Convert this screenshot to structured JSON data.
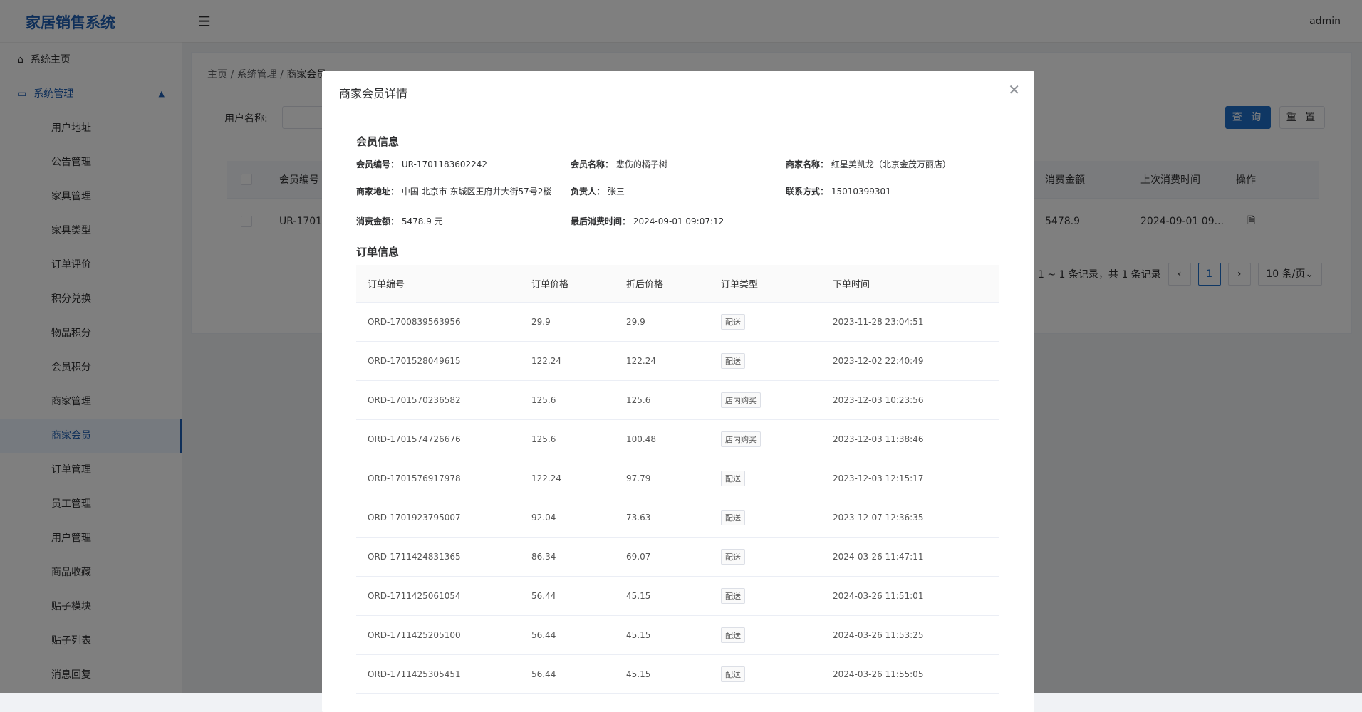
{
  "app": {
    "title": "家居销售系统",
    "user": "admin"
  },
  "sidebar": {
    "home": "系统主页",
    "group": "系统管理",
    "items": [
      "用户地址",
      "公告管理",
      "家具管理",
      "家具类型",
      "订单评价",
      "积分兑换",
      "物品积分",
      "会员积分",
      "商家管理",
      "商家会员",
      "订单管理",
      "员工管理",
      "用户管理",
      "商品收藏",
      "贴子模块",
      "贴子列表",
      "消息回复"
    ],
    "active": "商家会员"
  },
  "breadcrumb": [
    "主页",
    "系统管理",
    "商家会员"
  ],
  "search": {
    "label": "用户名称:",
    "value": "",
    "query": "查 询",
    "reset": "重 置"
  },
  "list": {
    "headers": {
      "id": "会员编号",
      "amount": "消费金额",
      "last": "上次消费时间",
      "op": "操作"
    },
    "row": {
      "id": "UR-17011",
      "amount": "5478.9",
      "last": "2024-09-01 09..."
    }
  },
  "pagination": {
    "summary": "1 ~ 1 条记录，共 1 条记录",
    "current": "1",
    "size": "10 条/页"
  },
  "modal": {
    "title": "商家会员详情",
    "member_section": "会员信息",
    "fields": [
      {
        "label": "会员编号：",
        "value": "UR-1701183602242"
      },
      {
        "label": "会员名称：",
        "value": "悲伤的橘子树"
      },
      {
        "label": "商家名称：",
        "value": "红星美凯龙（北京金茂万丽店）"
      },
      {
        "label": "商家地址：",
        "value": "中国 北京市 东城区王府井大街57号2楼"
      },
      {
        "label": "负责人：",
        "value": "张三"
      },
      {
        "label": "联系方式：",
        "value": "15010399301"
      },
      {
        "label": "消费金额：",
        "value": "5478.9 元"
      },
      {
        "label": "最后消费时间：",
        "value": "2024-09-01 09:07:12"
      }
    ],
    "order_section": "订单信息",
    "order_headers": [
      "订单编号",
      "订单价格",
      "折后价格",
      "订单类型",
      "下单时间"
    ],
    "orders": [
      [
        "ORD-1700839563956",
        "29.9",
        "29.9",
        "配送",
        "2023-11-28 23:04:51"
      ],
      [
        "ORD-1701528049615",
        "122.24",
        "122.24",
        "配送",
        "2023-12-02 22:40:49"
      ],
      [
        "ORD-1701570236582",
        "125.6",
        "125.6",
        "店内购买",
        "2023-12-03 10:23:56"
      ],
      [
        "ORD-1701574726676",
        "125.6",
        "100.48",
        "店内购买",
        "2023-12-03 11:38:46"
      ],
      [
        "ORD-1701576917978",
        "122.24",
        "97.79",
        "配送",
        "2023-12-03 12:15:17"
      ],
      [
        "ORD-1701923795007",
        "92.04",
        "73.63",
        "配送",
        "2023-12-07 12:36:35"
      ],
      [
        "ORD-1711424831365",
        "86.34",
        "69.07",
        "配送",
        "2024-03-26 11:47:11"
      ],
      [
        "ORD-1711425061054",
        "56.44",
        "45.15",
        "配送",
        "2024-03-26 11:51:01"
      ],
      [
        "ORD-1711425205100",
        "56.44",
        "45.15",
        "配送",
        "2024-03-26 11:53:25"
      ],
      [
        "ORD-1711425305451",
        "56.44",
        "45.15",
        "配送",
        "2024-03-26 11:55:05"
      ]
    ]
  }
}
